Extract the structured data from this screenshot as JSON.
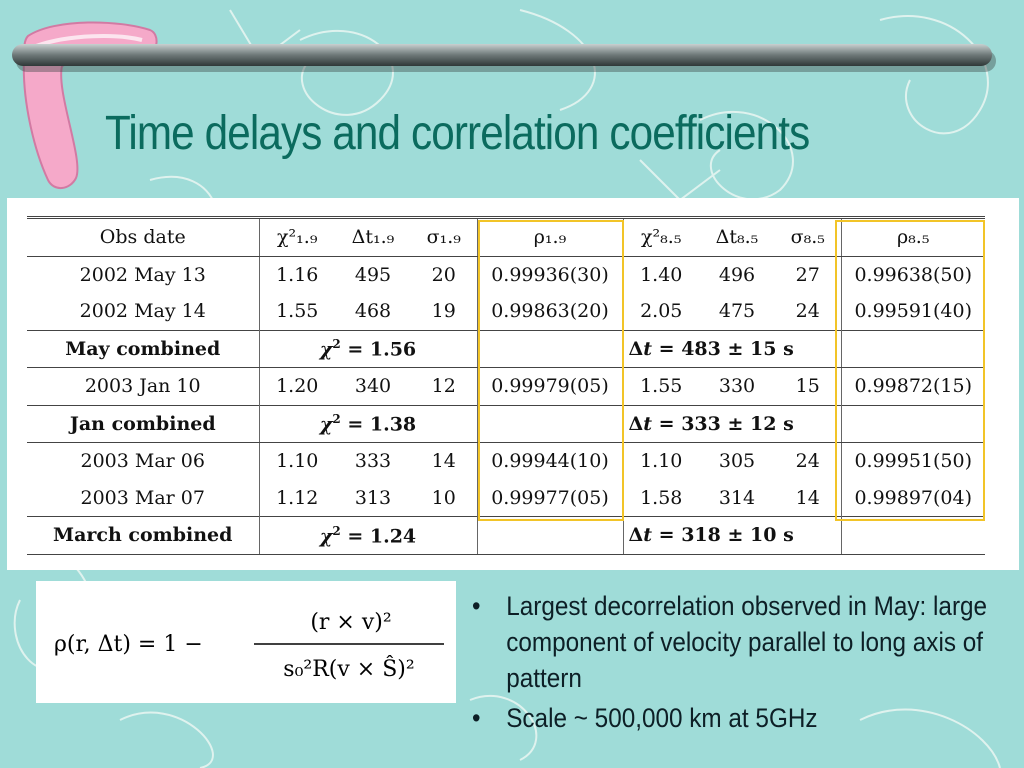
{
  "slide": {
    "title": "Time delays and correlation coefficients"
  },
  "table": {
    "headers": [
      "Obs date",
      "χ²₁.₉",
      "Δt₁.₉",
      "σ₁.₉",
      "ρ₁.₉",
      "χ²₈.₅",
      "Δt₈.₅",
      "σ₈.₅",
      "ρ₈.₅"
    ],
    "rows": [
      {
        "type": "data",
        "date": "2002 May 13",
        "chi19": "1.16",
        "dt19": "495",
        "sig19": "20",
        "rho19": "0.99936(30)",
        "chi85": "1.40",
        "dt85": "496",
        "sig85": "27",
        "rho85": "0.99638(50)"
      },
      {
        "type": "data",
        "date": "2002 May 14",
        "chi19": "1.55",
        "dt19": "468",
        "sig19": "19",
        "rho19": "0.99863(20)",
        "chi85": "2.05",
        "dt85": "475",
        "sig85": "24",
        "rho85": "0.99591(40)"
      },
      {
        "type": "combined",
        "label": "May combined",
        "chi_value": "1.56",
        "dt_value": "483",
        "dt_error": "15"
      },
      {
        "type": "data",
        "date": "2003 Jan 10",
        "chi19": "1.20",
        "dt19": "340",
        "sig19": "12",
        "rho19": "0.99979(05)",
        "chi85": "1.55",
        "dt85": "330",
        "sig85": "15",
        "rho85": "0.99872(15)"
      },
      {
        "type": "combined",
        "label": "Jan combined",
        "chi_value": "1.38",
        "dt_value": "333",
        "dt_error": "12"
      },
      {
        "type": "data",
        "date": "2003 Mar 06",
        "chi19": "1.10",
        "dt19": "333",
        "sig19": "14",
        "rho19": "0.99944(10)",
        "chi85": "1.10",
        "dt85": "305",
        "sig85": "24",
        "rho85": "0.99951(50)"
      },
      {
        "type": "data",
        "date": "2003 Mar 07",
        "chi19": "1.12",
        "dt19": "313",
        "sig19": "10",
        "rho19": "0.99977(05)",
        "chi85": "1.58",
        "dt85": "314",
        "sig85": "14",
        "rho85": "0.99897(04)"
      },
      {
        "type": "combined",
        "label": "March combined",
        "chi_value": "1.24",
        "dt_value": "318",
        "dt_error": "10"
      }
    ],
    "highlight_color": "#f2c428"
  },
  "formula": {
    "lhs": "ρ(r, Δt) = 1 −",
    "numerator": "(r × v)²",
    "denominator": "s₀²R(v × Ŝ)²"
  },
  "bullets": [
    "Largest decorrelation observed in May: large component of velocity parallel to long axis of pattern",
    "Scale ~ 500,000 km at 5GHz"
  ],
  "bullet_glyph": "•",
  "colors": {
    "background": "#9fdcd8",
    "title": "#0b6b5e",
    "doodle": "#f4faf6"
  }
}
